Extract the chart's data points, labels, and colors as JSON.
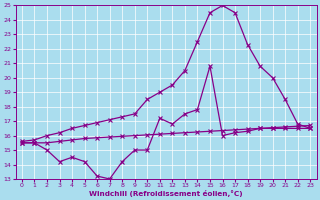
{
  "xlabel": "Windchill (Refroidissement éolien,°C)",
  "xlim": [
    -0.5,
    23.5
  ],
  "ylim": [
    13,
    25
  ],
  "yticks": [
    13,
    14,
    15,
    16,
    17,
    18,
    19,
    20,
    21,
    22,
    23,
    24,
    25
  ],
  "xticks": [
    0,
    1,
    2,
    3,
    4,
    5,
    6,
    7,
    8,
    9,
    10,
    11,
    12,
    13,
    14,
    15,
    16,
    17,
    18,
    19,
    20,
    21,
    22,
    23
  ],
  "bg_color": "#aaddee",
  "line_color": "#880088",
  "line1_x": [
    0,
    1,
    2,
    3,
    4,
    5,
    6,
    7,
    8,
    9,
    10,
    11,
    12,
    13,
    14,
    15,
    16,
    17,
    18,
    19,
    20,
    21,
    22,
    23
  ],
  "line1_y": [
    15.5,
    15.5,
    15.0,
    14.2,
    14.5,
    14.2,
    13.2,
    13.0,
    14.2,
    15.0,
    15.0,
    17.2,
    16.8,
    17.5,
    17.8,
    20.8,
    16.0,
    16.2,
    16.3,
    16.5,
    16.5,
    16.5,
    16.5,
    16.5
  ],
  "line2_x": [
    0,
    1,
    2,
    3,
    4,
    5,
    6,
    7,
    8,
    9,
    10,
    11,
    12,
    13,
    14,
    15,
    16,
    17,
    18,
    19,
    20,
    21,
    22,
    23
  ],
  "line2_y": [
    15.5,
    15.5,
    15.5,
    15.6,
    15.7,
    15.8,
    15.85,
    15.9,
    15.95,
    16.0,
    16.05,
    16.1,
    16.15,
    16.2,
    16.25,
    16.3,
    16.35,
    16.4,
    16.45,
    16.5,
    16.55,
    16.6,
    16.65,
    16.7
  ],
  "line3_x": [
    0,
    1,
    2,
    3,
    4,
    5,
    6,
    7,
    8,
    9,
    10,
    11,
    12,
    13,
    14,
    15,
    16,
    17,
    18,
    19,
    20,
    21,
    22,
    23
  ],
  "line3_y": [
    15.6,
    15.7,
    16.0,
    16.2,
    16.5,
    16.7,
    16.9,
    17.1,
    17.3,
    17.5,
    18.5,
    19.0,
    19.5,
    20.5,
    22.5,
    24.5,
    25.0,
    24.5,
    22.3,
    20.8,
    20.0,
    18.5,
    16.8,
    16.5
  ]
}
